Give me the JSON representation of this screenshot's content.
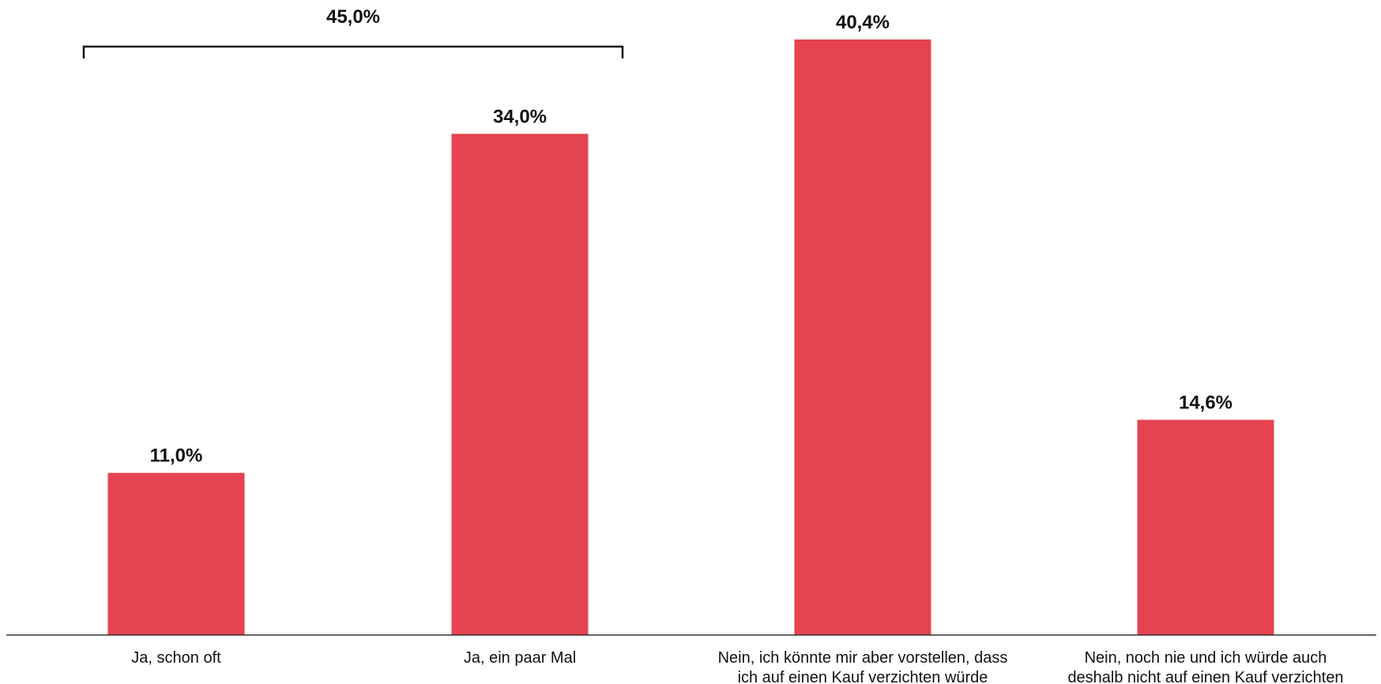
{
  "chart_data": {
    "type": "bar",
    "categories": [
      [
        "Ja, schon oft"
      ],
      [
        "Ja, ein paar Mal"
      ],
      [
        "Nein, ich könnte mir aber vorstellen, dass",
        "ich auf einen Kauf verzichten würde"
      ],
      [
        "Nein, noch nie und ich würde auch",
        "deshalb nicht auf einen Kauf verzichten"
      ]
    ],
    "values": [
      11.0,
      34.0,
      40.4,
      14.6
    ],
    "value_labels": [
      "11,0%",
      "34,0%",
      "40,4%",
      "14,6%"
    ],
    "ylim": [
      0,
      40.4
    ],
    "grid": false,
    "bar_color": "#e5434f",
    "group_bracket": {
      "label": "45,0%",
      "from_index": 0,
      "to_index": 1,
      "value": 45.0
    }
  }
}
